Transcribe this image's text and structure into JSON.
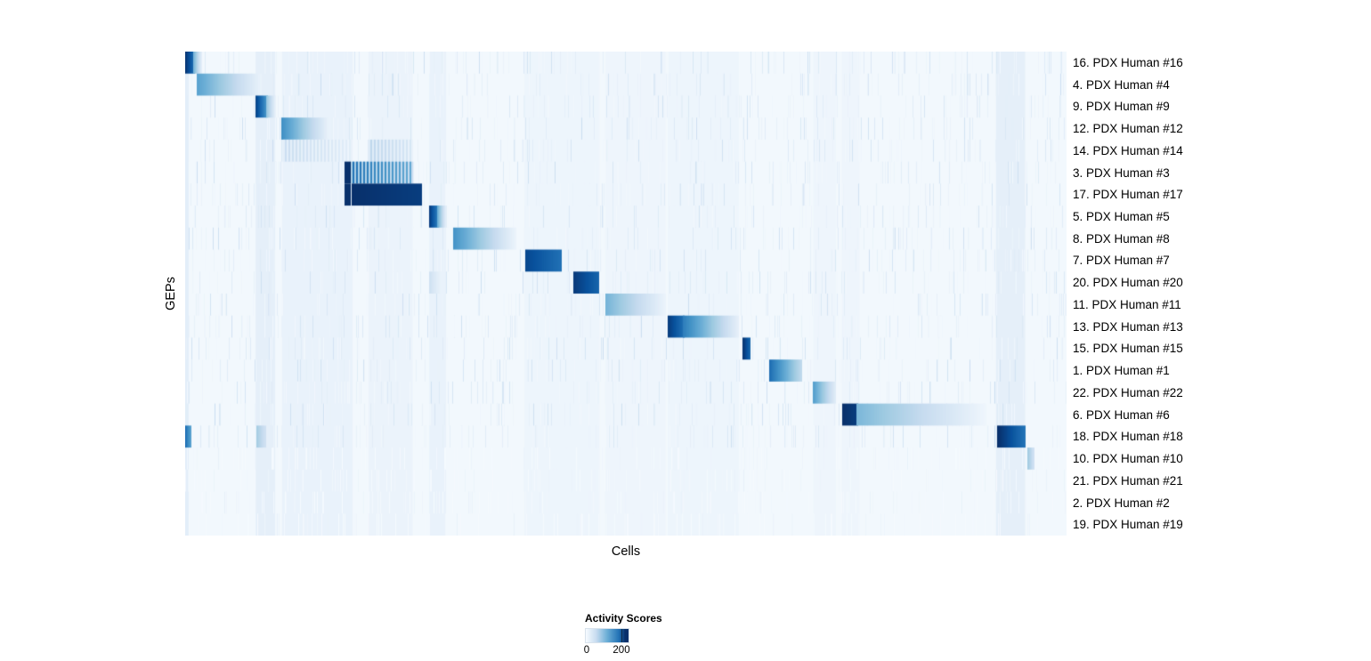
{
  "chart_data": {
    "type": "heatmap",
    "title": "",
    "xlabel": "Cells",
    "ylabel": "GEPs",
    "colormap": "Blues",
    "value_range": [
      0,
      200
    ],
    "legend": {
      "title": "Activity Scores",
      "ticks": [
        "0",
        "200"
      ]
    },
    "rows": [
      {
        "label": "16. PDX Human #16",
        "segments": [
          {
            "from": 0.0,
            "to": 0.01,
            "v0": 195,
            "v1": 150
          },
          {
            "from": 0.01,
            "to": 0.018,
            "v0": 90,
            "v1": 20
          }
        ]
      },
      {
        "label": "4. PDX Human #4",
        "segments": [
          {
            "from": 0.014,
            "to": 0.085,
            "v0": 110,
            "v1": 14
          }
        ]
      },
      {
        "label": "9. PDX Human #9",
        "segments": [
          {
            "from": 0.08,
            "to": 0.092,
            "v0": 185,
            "v1": 120
          },
          {
            "from": 0.092,
            "to": 0.102,
            "v0": 80,
            "v1": 15
          }
        ]
      },
      {
        "label": "12. PDX Human #12",
        "segments": [
          {
            "from": 0.11,
            "to": 0.162,
            "v0": 125,
            "v1": 14
          }
        ]
      },
      {
        "label": "14. PDX Human #14",
        "segments": [
          {
            "from": 0.112,
            "to": 0.186,
            "v0": 45,
            "v1": 22,
            "style": "striped"
          },
          {
            "from": 0.209,
            "to": 0.257,
            "v0": 55,
            "v1": 32,
            "style": "striped"
          }
        ]
      },
      {
        "label": "3. PDX Human #3",
        "segments": [
          {
            "from": 0.181,
            "to": 0.186,
            "v0": 200,
            "v1": 200
          },
          {
            "from": 0.188,
            "to": 0.257,
            "v0": 150,
            "v1": 105,
            "style": "striped"
          }
        ]
      },
      {
        "label": "17. PDX Human #17",
        "segments": [
          {
            "from": 0.181,
            "to": 0.186,
            "v0": 200,
            "v1": 200
          },
          {
            "from": 0.189,
            "to": 0.267,
            "v0": 200,
            "v1": 190
          }
        ]
      },
      {
        "label": "5. PDX Human #5",
        "segments": [
          {
            "from": 0.277,
            "to": 0.286,
            "v0": 190,
            "v1": 140
          },
          {
            "from": 0.286,
            "to": 0.295,
            "v0": 100,
            "v1": 22
          }
        ]
      },
      {
        "label": "8. PDX Human #8",
        "segments": [
          {
            "from": 0.305,
            "to": 0.374,
            "v0": 122,
            "v1": 12
          }
        ]
      },
      {
        "label": "7. PDX Human #7",
        "segments": [
          {
            "from": 0.386,
            "to": 0.426,
            "v0": 182,
            "v1": 150
          }
        ]
      },
      {
        "label": "20. PDX Human #20",
        "segments": [
          {
            "from": 0.277,
            "to": 0.287,
            "v0": 40,
            "v1": 18
          },
          {
            "from": 0.441,
            "to": 0.468,
            "v0": 192,
            "v1": 160
          }
        ]
      },
      {
        "label": "11. PDX Human #11",
        "segments": [
          {
            "from": 0.477,
            "to": 0.544,
            "v0": 95,
            "v1": 12
          }
        ]
      },
      {
        "label": "13. PDX Human #13",
        "segments": [
          {
            "from": 0.548,
            "to": 0.565,
            "v0": 190,
            "v1": 150
          },
          {
            "from": 0.565,
            "to": 0.627,
            "v0": 140,
            "v1": 18
          }
        ]
      },
      {
        "label": "15. PDX Human #15",
        "segments": [
          {
            "from": 0.633,
            "to": 0.64,
            "v0": 195,
            "v1": 160
          }
        ]
      },
      {
        "label": "1. PDX Human #1",
        "segments": [
          {
            "from": 0.663,
            "to": 0.698,
            "v0": 152,
            "v1": 55
          }
        ]
      },
      {
        "label": "22. PDX Human #22",
        "segments": [
          {
            "from": 0.713,
            "to": 0.737,
            "v0": 112,
            "v1": 24
          }
        ]
      },
      {
        "label": "6. PDX Human #6",
        "segments": [
          {
            "from": 0.746,
            "to": 0.762,
            "v0": 200,
            "v1": 190
          },
          {
            "from": 0.762,
            "to": 0.908,
            "v0": 92,
            "v1": 8
          }
        ]
      },
      {
        "label": "18. PDX Human #18",
        "segments": [
          {
            "from": 0.0,
            "to": 0.006,
            "v0": 150,
            "v1": 110
          },
          {
            "from": 0.081,
            "to": 0.09,
            "v0": 70,
            "v1": 40
          },
          {
            "from": 0.922,
            "to": 0.952,
            "v0": 200,
            "v1": 148
          }
        ]
      },
      {
        "label": "10. PDX Human #10",
        "segments": [
          {
            "from": 0.956,
            "to": 0.962,
            "v0": 72,
            "v1": 40
          }
        ]
      },
      {
        "label": "21. PDX Human #21",
        "segments": []
      },
      {
        "label": "2. PDX Human #2",
        "segments": []
      },
      {
        "label": "19. PDX Human #19",
        "segments": []
      }
    ],
    "background_bands": [
      {
        "from": 0.0,
        "to": 0.004,
        "v": 20
      },
      {
        "from": 0.08,
        "to": 0.102,
        "v": 18
      },
      {
        "from": 0.11,
        "to": 0.19,
        "v": 14
      },
      {
        "from": 0.208,
        "to": 0.258,
        "v": 12
      },
      {
        "from": 0.277,
        "to": 0.296,
        "v": 14
      },
      {
        "from": 0.385,
        "to": 0.47,
        "v": 10
      },
      {
        "from": 0.477,
        "to": 0.545,
        "v": 9
      },
      {
        "from": 0.548,
        "to": 0.628,
        "v": 10
      },
      {
        "from": 0.713,
        "to": 0.738,
        "v": 9
      },
      {
        "from": 0.745,
        "to": 0.765,
        "v": 9
      },
      {
        "from": 0.92,
        "to": 0.953,
        "v": 18
      }
    ],
    "base_value": 5,
    "colormap_hex": [
      "#f7fbff",
      "#deebf7",
      "#c6dbef",
      "#9ecae1",
      "#6baed6",
      "#4292c6",
      "#2171b5",
      "#08519c",
      "#08306b"
    ]
  }
}
